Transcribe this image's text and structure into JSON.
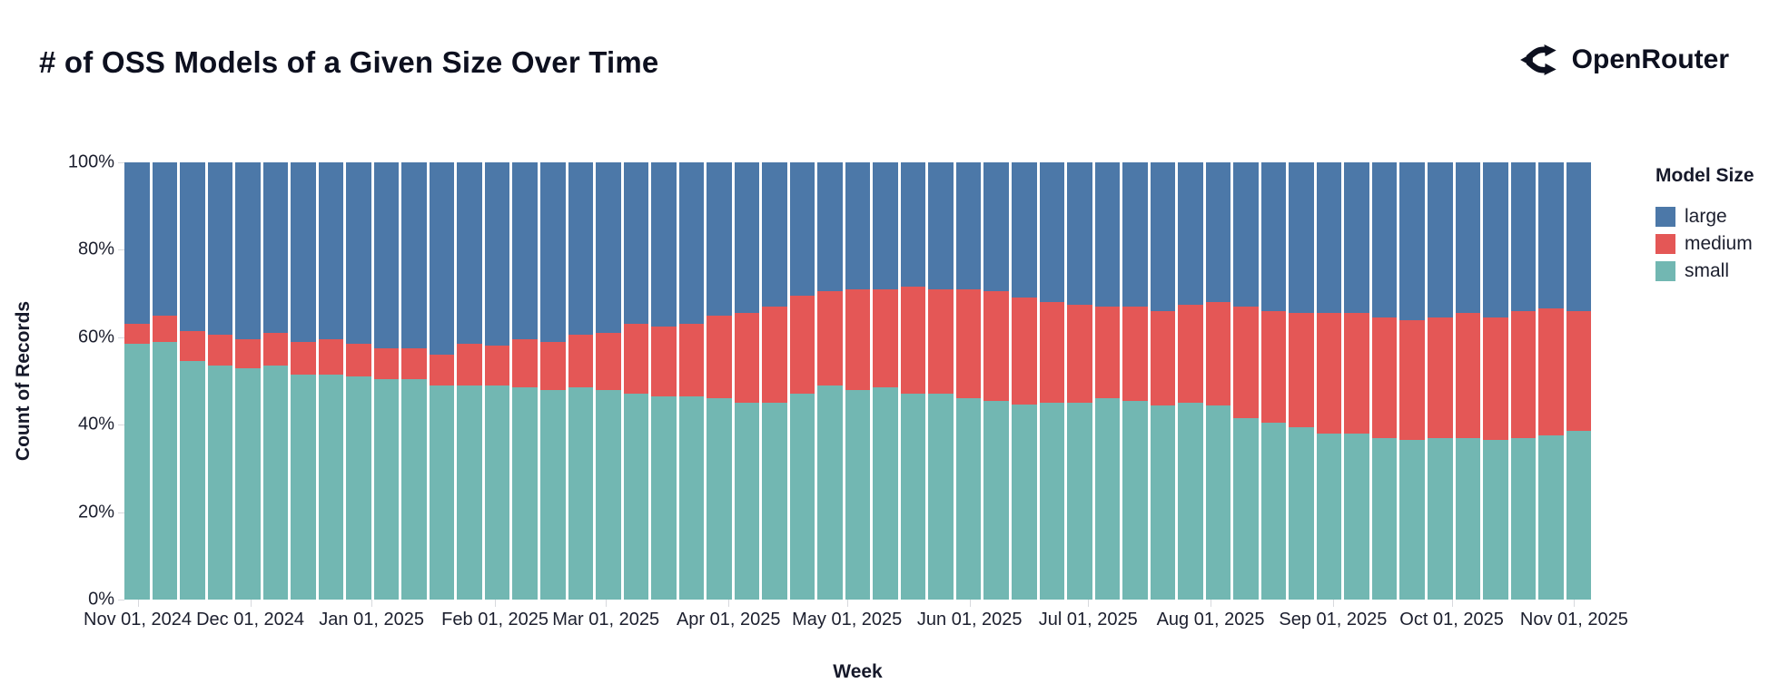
{
  "header": {
    "brand": "OpenRouter"
  },
  "chart_data": {
    "type": "bar",
    "stacked": "normalized",
    "title": "# of OSS Models of a Given Size Over Time",
    "xlabel": "Week",
    "ylabel": "Count of Records",
    "legend_title": "Model Size",
    "legend_position": "right",
    "grid": false,
    "ylim": [
      0,
      100
    ],
    "y_unit": "%",
    "x": [
      "2024-11-01",
      "2024-11-08",
      "2024-11-15",
      "2024-11-22",
      "2024-11-29",
      "2024-12-06",
      "2024-12-13",
      "2024-12-20",
      "2024-12-27",
      "2025-01-03",
      "2025-01-10",
      "2025-01-17",
      "2025-01-24",
      "2025-01-31",
      "2025-02-07",
      "2025-02-14",
      "2025-02-21",
      "2025-02-28",
      "2025-03-07",
      "2025-03-14",
      "2025-03-21",
      "2025-03-28",
      "2025-04-04",
      "2025-04-11",
      "2025-04-18",
      "2025-04-25",
      "2025-05-02",
      "2025-05-09",
      "2025-05-16",
      "2025-05-23",
      "2025-05-30",
      "2025-06-06",
      "2025-06-13",
      "2025-06-20",
      "2025-06-27",
      "2025-07-04",
      "2025-07-11",
      "2025-07-18",
      "2025-07-25",
      "2025-08-01",
      "2025-08-08",
      "2025-08-15",
      "2025-08-22",
      "2025-08-29",
      "2025-09-05",
      "2025-09-12",
      "2025-09-19",
      "2025-09-26",
      "2025-10-03",
      "2025-10-10",
      "2025-10-17",
      "2025-10-24",
      "2025-10-31"
    ],
    "series": [
      {
        "name": "large",
        "color": "#4c78a8",
        "values": [
          37,
          35,
          38.5,
          39.5,
          40.5,
          39,
          41,
          40.5,
          41.5,
          42.5,
          42.5,
          44,
          41.5,
          42,
          40.5,
          41,
          39.5,
          39,
          37,
          37.5,
          37,
          35,
          34.5,
          33,
          30.5,
          29.5,
          29,
          29,
          28.5,
          29,
          29,
          29.5,
          31,
          32,
          32.5,
          33,
          33,
          34,
          32.5,
          32,
          33,
          34,
          34.5,
          34.5,
          34.5,
          35.5,
          36,
          35.5,
          34.5,
          35.5,
          34,
          33.5,
          34
        ]
      },
      {
        "name": "medium",
        "color": "#e45756",
        "values": [
          4.5,
          6,
          7,
          7,
          6.5,
          7.5,
          7.5,
          8,
          7.5,
          7,
          7,
          7,
          9.5,
          9,
          11,
          11,
          12,
          13,
          16,
          16,
          16.5,
          19,
          20.5,
          22,
          22.5,
          21.5,
          23,
          22.5,
          24.5,
          24,
          25,
          25,
          24.5,
          23,
          22.5,
          21,
          21.5,
          21.5,
          22.5,
          23.5,
          25.5,
          25.5,
          26,
          27.5,
          27.5,
          27.5,
          27.5,
          27.5,
          28.5,
          28,
          29,
          29,
          27.5
        ]
      },
      {
        "name": "small",
        "color": "#72b7b2",
        "values": [
          58.5,
          59,
          54.5,
          53.5,
          53,
          53.5,
          51.5,
          51.5,
          51,
          50.5,
          50.5,
          49,
          49,
          49,
          48.5,
          48,
          48.5,
          48,
          47,
          46.5,
          46.5,
          46,
          45,
          45,
          47,
          49,
          48,
          48.5,
          47,
          47,
          46,
          45.5,
          44.5,
          45,
          45,
          46,
          45.5,
          44.5,
          45,
          44.5,
          41.5,
          40.5,
          39.5,
          38,
          38,
          37,
          36.5,
          37,
          37,
          36.5,
          37,
          37.5,
          38.5
        ]
      }
    ],
    "y_ticks": [
      {
        "label": "0%",
        "value": 0
      },
      {
        "label": "20%",
        "value": 20
      },
      {
        "label": "40%",
        "value": 40
      },
      {
        "label": "60%",
        "value": 60
      },
      {
        "label": "80%",
        "value": 80
      },
      {
        "label": "100%",
        "value": 100
      }
    ],
    "x_ticks": [
      {
        "label": "Nov 01, 2024",
        "x_pct": 0.9
      },
      {
        "label": "Dec 01, 2024",
        "x_pct": 8.58
      },
      {
        "label": "Jan 01, 2025",
        "x_pct": 16.85
      },
      {
        "label": "Feb 01, 2025",
        "x_pct": 25.27
      },
      {
        "label": "Mar 01, 2025",
        "x_pct": 32.83
      },
      {
        "label": "Apr 01, 2025",
        "x_pct": 41.19
      },
      {
        "label": "May 01, 2025",
        "x_pct": 49.27
      },
      {
        "label": "Jun 01, 2025",
        "x_pct": 57.63
      },
      {
        "label": "Jul 01, 2025",
        "x_pct": 65.71
      },
      {
        "label": "Aug 01, 2025",
        "x_pct": 74.06
      },
      {
        "label": "Sep 01, 2025",
        "x_pct": 82.41
      },
      {
        "label": "Oct 01, 2025",
        "x_pct": 90.5
      },
      {
        "label": "Nov 01, 2025",
        "x_pct": 98.85
      }
    ]
  }
}
